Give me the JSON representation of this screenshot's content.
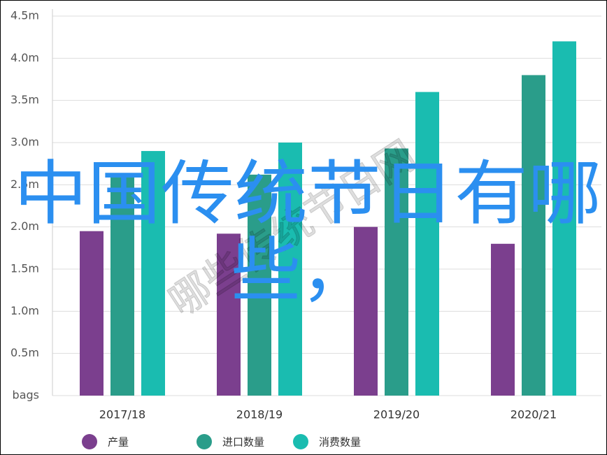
{
  "chart_data": {
    "type": "bar",
    "categories": [
      "2017/18",
      "2018/19",
      "2019/20",
      "2020/21"
    ],
    "series": [
      {
        "name": "产量",
        "color": "#7b3f8e",
        "values": [
          1.95,
          1.92,
          2.0,
          1.8
        ]
      },
      {
        "name": "进口数量",
        "color": "#2a9d8a",
        "values": [
          2.62,
          2.62,
          2.93,
          3.8
        ]
      },
      {
        "name": "消费数量",
        "color": "#1abcb0",
        "values": [
          2.9,
          3.0,
          3.6,
          4.2
        ]
      }
    ],
    "ylim": [
      0,
      4.5
    ],
    "yticks": [
      {
        "value": 0,
        "label": "bags"
      },
      {
        "value": 0.5,
        "label": "0.5m"
      },
      {
        "value": 1,
        "label": "1.0m"
      },
      {
        "value": 1.5,
        "label": "1.5m"
      },
      {
        "value": 2,
        "label": "2.0m"
      },
      {
        "value": 2.5,
        "label": "2.5m"
      },
      {
        "value": 3,
        "label": "3.0m"
      },
      {
        "value": 3.5,
        "label": "3.5m"
      },
      {
        "value": 4,
        "label": "4.0m"
      },
      {
        "value": 4.5,
        "label": "4.5m"
      }
    ],
    "grid": true,
    "legend": "bottom",
    "annotations": [
      "中国传统节日有哪",
      "些，",
      "哪些传统节日网"
    ]
  }
}
